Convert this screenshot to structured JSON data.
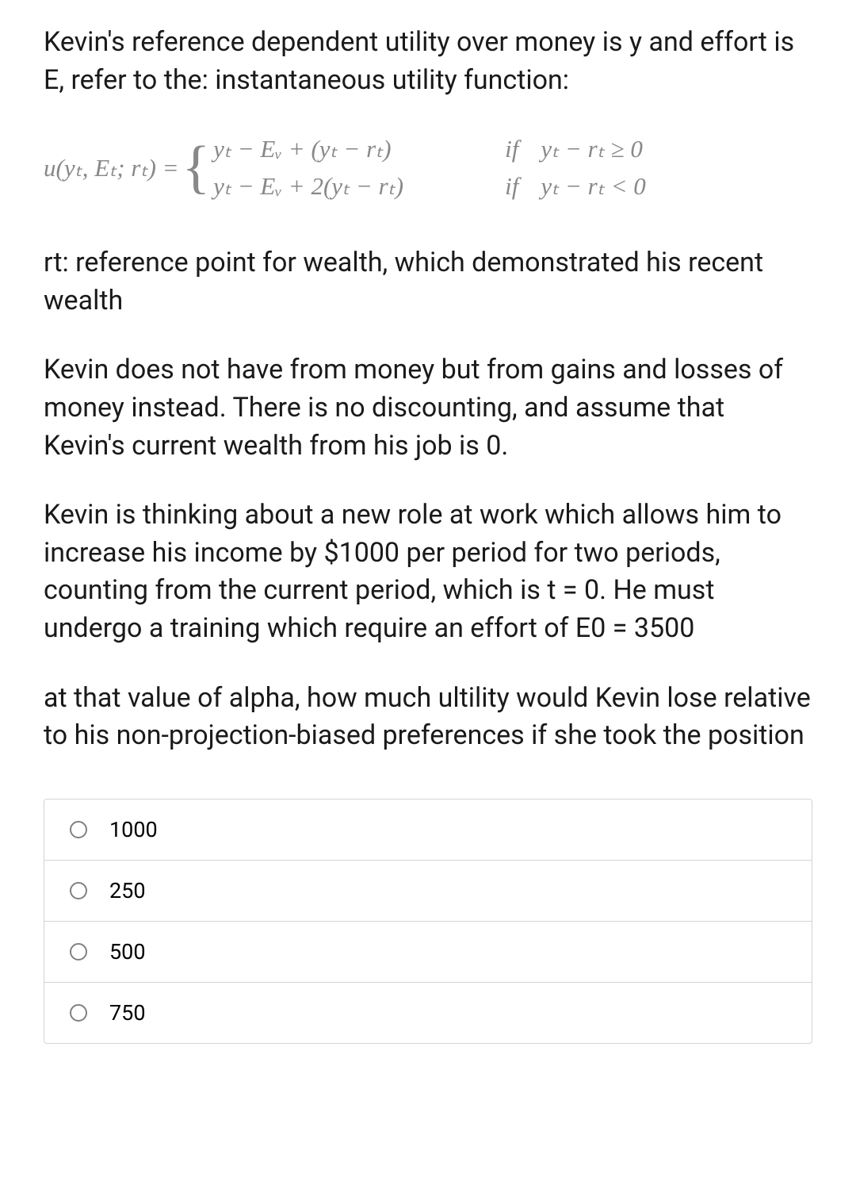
{
  "paragraphs": {
    "p1": "Kevin's reference dependent utility over money is y and effort is E, refer to the: instantaneous utility function:",
    "p2": "rt: reference point for wealth, which demonstrated his recent wealth",
    "p3": "Kevin does not have from money but from gains and losses of money instead. There is no discounting, and assume that Kevin's current wealth from his job is 0.",
    "p4": "Kevin is thinking about a new role at work which allows him to increase his income by $1000 per period for two periods, counting from the current period, which is t = 0. He must undergo a training which require an effort of E0 = 3500",
    "p5": "at that value of alpha, how much ultility would Kevin lose relative to his non-projection-biased preferences if she took the position"
  },
  "equation": {
    "lhs": "u(yₜ, Eₜ; rₜ) = ",
    "case1_expr": "yₜ − Eᵥ + (yₜ − rₜ)",
    "case1_if": "if",
    "case1_cond": "yₜ − rₜ ≥ 0",
    "case2_expr": "yₜ − Eᵥ + 2(yₜ − rₜ)",
    "case2_if": "if",
    "case2_cond": "yₜ − rₜ < 0",
    "color": "#888888",
    "fontsize": 31
  },
  "options": [
    {
      "label": "1000"
    },
    {
      "label": "250"
    },
    {
      "label": "500"
    },
    {
      "label": "750"
    }
  ],
  "styles": {
    "body_font_size": 34,
    "option_font_size": 27,
    "text_color": "#1a1a1a",
    "border_color": "#d4d4d4",
    "radio_border_color": "#808080",
    "background_color": "#ffffff"
  }
}
